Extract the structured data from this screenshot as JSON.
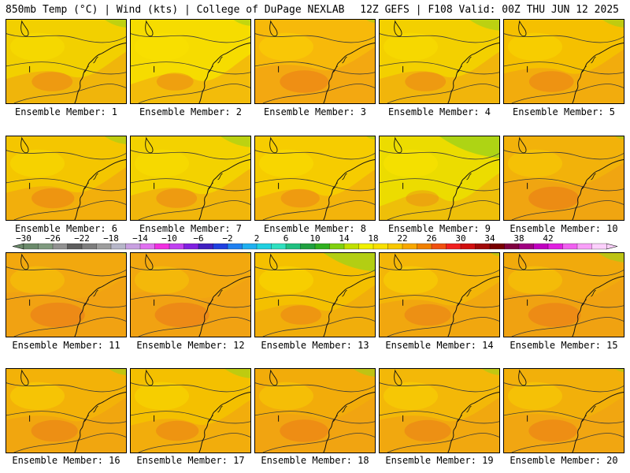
{
  "header": {
    "left": "850mb Temp (°C) | Wind (kts) | College of DuPage NEXLAB",
    "right": "12Z GEFS | F108 Valid: 00Z THU JUN 12 2025"
  },
  "members": [
    {
      "label": "Ensemble Member: 1",
      "bg": "#f2d000",
      "warm": 0.45,
      "cool": 0.25
    },
    {
      "label": "Ensemble Member: 2",
      "bg": "#f6dc00",
      "warm": 0.35,
      "cool": 0.2
    },
    {
      "label": "Ensemble Member: 3",
      "bg": "#f7b90a",
      "warm": 0.65,
      "cool": 0.1
    },
    {
      "label": "Ensemble Member: 4",
      "bg": "#f3d000",
      "warm": 0.45,
      "cool": 0.35
    },
    {
      "label": "Ensemble Member: 5",
      "bg": "#f5c000",
      "warm": 0.55,
      "cool": 0.25
    },
    {
      "label": "Ensemble Member: 6",
      "bg": "#f4c600",
      "warm": 0.5,
      "cool": 0.25
    },
    {
      "label": "Ensemble Member: 7",
      "bg": "#f3d200",
      "warm": 0.45,
      "cool": 0.35
    },
    {
      "label": "Ensemble Member: 8",
      "bg": "#f6cc00",
      "warm": 0.4,
      "cool": 0.1
    },
    {
      "label": "Ensemble Member: 9",
      "bg": "#ecdc00",
      "warm": 0.25,
      "cool": 0.7
    },
    {
      "label": "Ensemble Member: 10",
      "bg": "#f2b20a",
      "warm": 0.7,
      "cool": 0.1
    },
    {
      "label": "Ensemble Member: 11",
      "bg": "#f2a80e",
      "warm": 0.8,
      "cool": 0.05
    },
    {
      "label": "Ensemble Member: 12",
      "bg": "#f2a80e",
      "warm": 0.8,
      "cool": 0.05
    },
    {
      "label": "Ensemble Member: 13",
      "bg": "#f4c000",
      "warm": 0.45,
      "cool": 0.6
    },
    {
      "label": "Ensemble Member: 14",
      "bg": "#f3b608",
      "warm": 0.6,
      "cool": 0.1
    },
    {
      "label": "Ensemble Member: 15",
      "bg": "#f1aa0c",
      "warm": 0.75,
      "cool": 0.3
    },
    {
      "label": "Ensemble Member: 16",
      "bg": "#f3b208",
      "warm": 0.6,
      "cool": 0.2
    },
    {
      "label": "Ensemble Member: 17",
      "bg": "#f4c000",
      "warm": 0.5,
      "cool": 0.3
    },
    {
      "label": "Ensemble Member: 18",
      "bg": "#f2ac0a",
      "warm": 0.65,
      "cool": 0.25
    },
    {
      "label": "Ensemble Member: 19",
      "bg": "#f3b808",
      "warm": 0.6,
      "cool": 0.2
    },
    {
      "label": "Ensemble Member: 20",
      "bg": "#f2b00a",
      "warm": 0.65,
      "cool": 0.1
    }
  ],
  "colorbar": {
    "ticks": [
      "−30",
      "−26",
      "−22",
      "−18",
      "−14",
      "−10",
      "−6",
      "−2",
      "2",
      "6",
      "10",
      "14",
      "18",
      "22",
      "26",
      "30",
      "34",
      "38",
      "42"
    ],
    "colors": [
      "#6b8a6b",
      "#7f9a7f",
      "#919191",
      "#5d5d5d",
      "#7d7d7d",
      "#9d9d9d",
      "#b6b6c8",
      "#c8a0e0",
      "#e070f0",
      "#f030e0",
      "#c040f0",
      "#8020e0",
      "#4020c0",
      "#2040e0",
      "#2080f0",
      "#20b0f0",
      "#20d0e0",
      "#30e0c0",
      "#20c080",
      "#20a040",
      "#30b020",
      "#80d010",
      "#c0e000",
      "#f0f000",
      "#f8e000",
      "#f8c800",
      "#f8a800",
      "#f08000",
      "#f05010",
      "#f02020",
      "#d01010",
      "#a00808",
      "#780000",
      "#800040",
      "#a00080",
      "#c000c0",
      "#e020e0",
      "#f060f0",
      "#f8a0f8",
      "#fcd0fc"
    ]
  }
}
